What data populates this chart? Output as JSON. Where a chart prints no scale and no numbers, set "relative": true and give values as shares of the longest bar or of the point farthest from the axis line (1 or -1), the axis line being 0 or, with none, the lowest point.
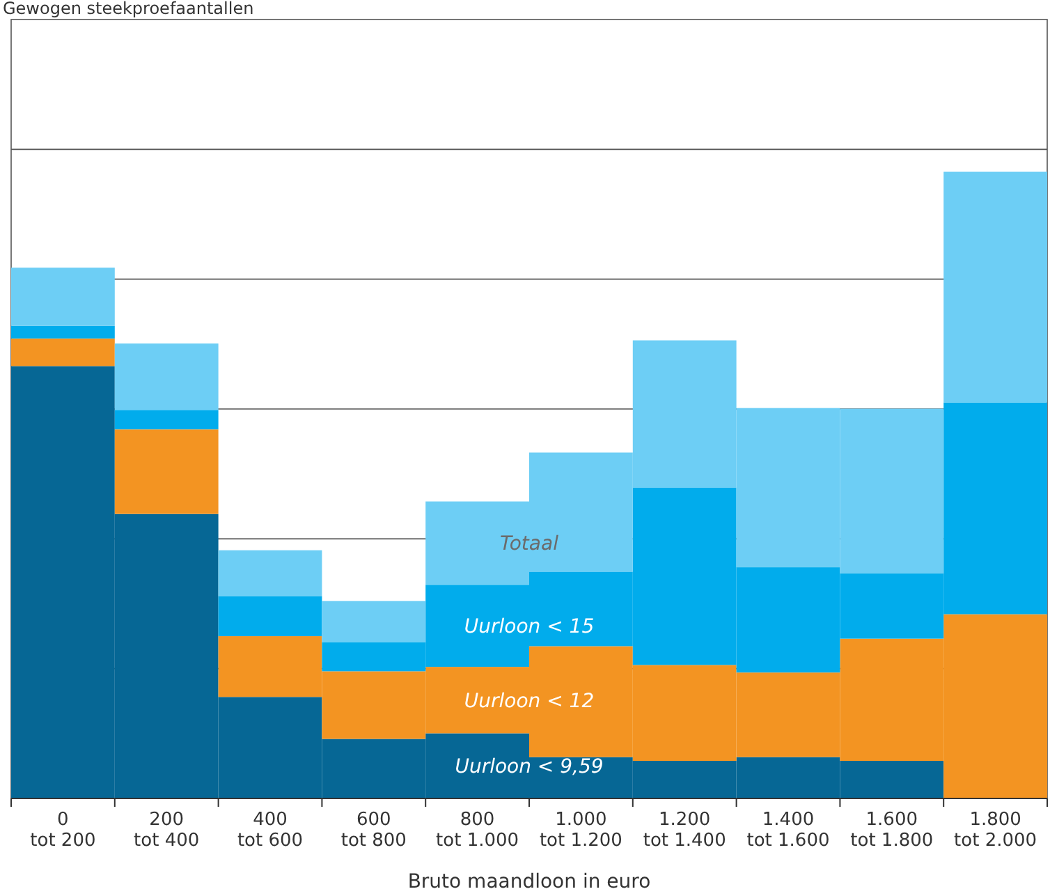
{
  "chart_data": {
    "type": "bar",
    "title": "Gewogen steekproefaantallen",
    "xlabel": "Bruto maandloon in euro",
    "categories": [
      "0 tot 200",
      "200 tot 400",
      "400 tot 600",
      "600 tot 800",
      "800 tot 1.000",
      "1.000 tot 1.200",
      "1.200 tot 1.400",
      "1.400 tot 1.600",
      "1.600 tot 1.800",
      "1.800 tot 2.000"
    ],
    "stacked": true,
    "relative": true,
    "grid": true,
    "series": [
      {
        "name": "Uurloon < 9,59",
        "color": "#066795",
        "values": [
          0.69,
          0.454,
          0.162,
          0.095,
          0.104,
          0.066,
          0.06,
          0.066,
          0.06,
          0
        ]
      },
      {
        "name": "Uurloon < 12",
        "color": "#f39422",
        "values": [
          0.044,
          0.135,
          0.097,
          0.108,
          0.106,
          0.177,
          0.153,
          0.135,
          0.195,
          0.294
        ]
      },
      {
        "name": "Uurloon < 15",
        "color": "#01acec",
        "values": [
          0.02,
          0.031,
          0.064,
          0.046,
          0.131,
          0.119,
          0.283,
          0.168,
          0.104,
          0.338
        ]
      },
      {
        "name": "Totaal",
        "color": "#6dcef5",
        "values": [
          0.093,
          0.106,
          0.073,
          0.066,
          0.133,
          0.19,
          0.235,
          0.254,
          0.263,
          0.368
        ]
      }
    ]
  }
}
